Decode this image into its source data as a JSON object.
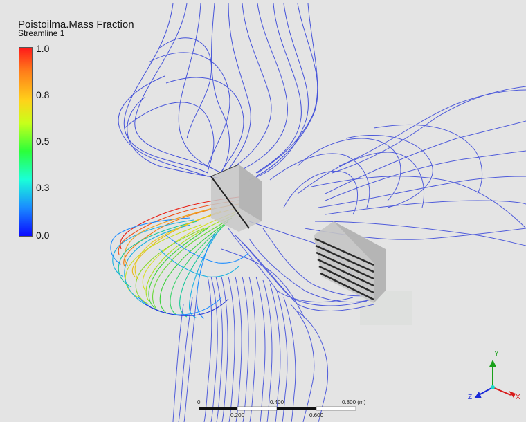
{
  "legend": {
    "title": "Poistoilma.Mass Fraction",
    "subtitle": "Streamline 1",
    "ticks": [
      "1.0",
      "0.8",
      "0.5",
      "0.3",
      "0.0"
    ]
  },
  "scale_bar": {
    "labels": [
      "0",
      "0.400",
      "0.800 (m)",
      "0.200",
      "0.600"
    ]
  },
  "axes": {
    "y_label": "Y",
    "z_label": "Z",
    "x_label": "X"
  },
  "colors": {
    "background": "#e4e4e4",
    "streamline_blue": "#2a3ad8",
    "streamline_cyan": "#1ab0e0",
    "streamline_green": "#3ad23a",
    "streamline_yellow": "#d8e020",
    "streamline_orange": "#f07a10",
    "streamline_red": "#e81a10",
    "axis_y": "#1aa01a",
    "axis_z": "#1a2ad8",
    "axis_x": "#d81a1a"
  }
}
